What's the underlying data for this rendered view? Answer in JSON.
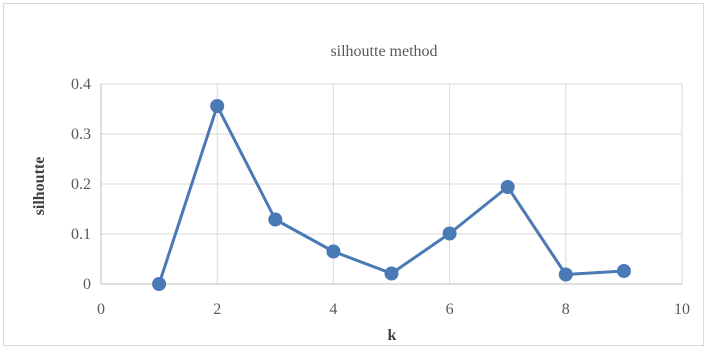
{
  "chart_data": {
    "type": "scatter",
    "title": "silhoutte method",
    "xlabel": "k",
    "ylabel": "silhoutte",
    "xlim": [
      0,
      10
    ],
    "ylim": [
      0,
      0.4
    ],
    "xticks": [
      0,
      2,
      4,
      6,
      8,
      10
    ],
    "yticks": [
      0,
      0.1,
      0.2,
      0.3,
      0.4
    ],
    "xtick_labels": [
      "0",
      "2",
      "4",
      "6",
      "8",
      "10"
    ],
    "ytick_labels": [
      "0",
      "0.1",
      "0.2",
      "0.3",
      "0.4"
    ],
    "grid": "vertical and horizontal",
    "legend": "none",
    "series": [
      {
        "color": "#4a7ab5",
        "x": [
          1,
          2,
          3,
          4,
          5,
          6,
          7,
          8,
          9
        ],
        "y": [
          0.0,
          0.356,
          0.129,
          0.065,
          0.021,
          0.101,
          0.194,
          0.019,
          0.026
        ]
      }
    ]
  }
}
